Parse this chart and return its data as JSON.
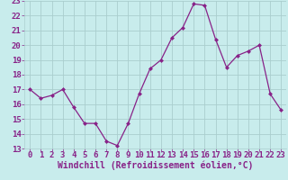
{
  "x": [
    0,
    1,
    2,
    3,
    4,
    5,
    6,
    7,
    8,
    9,
    10,
    11,
    12,
    13,
    14,
    15,
    16,
    17,
    18,
    19,
    20,
    21,
    22,
    23
  ],
  "y": [
    17.0,
    16.4,
    16.6,
    17.0,
    15.8,
    14.7,
    14.7,
    13.5,
    13.2,
    14.7,
    16.7,
    18.4,
    19.0,
    20.5,
    21.2,
    22.8,
    22.7,
    20.4,
    18.5,
    19.3,
    19.6,
    20.0,
    16.7,
    15.6
  ],
  "line_color": "#882288",
  "marker": "D",
  "marker_size": 2.5,
  "bg_color": "#c8ecec",
  "grid_color": "#aacece",
  "xlabel": "Windchill (Refroidissement éolien,°C)",
  "xlabel_color": "#882288",
  "xlabel_fontsize": 7,
  "tick_color": "#882288",
  "tick_fontsize": 6.5,
  "ylim": [
    13,
    23
  ],
  "yticks": [
    13,
    14,
    15,
    16,
    17,
    18,
    19,
    20,
    21,
    22,
    23
  ],
  "xticks": [
    0,
    1,
    2,
    3,
    4,
    5,
    6,
    7,
    8,
    9,
    10,
    11,
    12,
    13,
    14,
    15,
    16,
    17,
    18,
    19,
    20,
    21,
    22,
    23
  ]
}
